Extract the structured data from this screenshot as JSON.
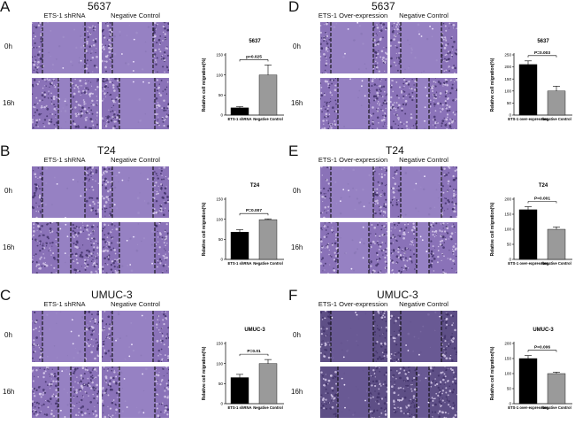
{
  "figure_colors": {
    "bar_treatment": "#000000",
    "bar_control": "#9a9a9a",
    "micrograph_tone": "#7a5aa8"
  },
  "panels": [
    {
      "letter": "A",
      "cell_line": "5637",
      "col1": "ETS-1 shRNA",
      "col2": "Negative Control",
      "row1": "0h",
      "row2": "16h",
      "treat_color": "#000000"
    },
    {
      "letter": "B",
      "cell_line": "T24",
      "col1": "ETS-1 shRNA",
      "col2": "Negative Control",
      "row1": "0h",
      "row2": "16h",
      "treat_color": "#000000"
    },
    {
      "letter": "C",
      "cell_line": "UMUC-3",
      "col1": "ETS-1 shRNA",
      "col2": "Negative Control",
      "row1": "0h",
      "row2": "16h",
      "treat_color": "#000000"
    },
    {
      "letter": "D",
      "cell_line": "5637",
      "col1": "ETS-1 Over-expression",
      "col2": "Negative Control",
      "row1": "0h",
      "row2": "16h",
      "treat_color": "#000000"
    },
    {
      "letter": "E",
      "cell_line": "T24",
      "col1": "ETS-1 Over-expression",
      "col2": "Negative Control",
      "row1": "0h",
      "row2": "16h",
      "treat_color": "#000000"
    },
    {
      "letter": "F",
      "cell_line": "UMUC-3",
      "col1": "ETS-1 Over-expression",
      "col2": "Negative Control",
      "row1": "0h",
      "row2": "16h",
      "treat_color": "#000000"
    }
  ],
  "chart_data": [
    {
      "type": "bar",
      "title": "5637",
      "ylabel": "Relative cell migration(%)",
      "categories": [
        "ETS-1 shRNA",
        "Negative Control"
      ],
      "values": [
        18,
        100
      ],
      "errors": [
        3,
        25
      ],
      "ylim": [
        0,
        150
      ],
      "yticks": [
        0,
        50,
        100,
        150
      ],
      "pvalue": "p=0.025"
    },
    {
      "type": "bar",
      "title": "T24",
      "ylabel": "Relative cell migration(%)",
      "categories": [
        "ETS-1 shRNA",
        "Negative Control"
      ],
      "values": [
        68,
        99
      ],
      "errors": [
        6,
        2
      ],
      "ylim": [
        0,
        150
      ],
      "yticks": [
        0,
        50,
        100,
        150
      ],
      "pvalue": "P=0.007"
    },
    {
      "type": "bar",
      "title": "UMUC-3",
      "ylabel": "Relative cell migration(%)",
      "categories": [
        "ETS-1 shRNA",
        "Negative Control"
      ],
      "values": [
        65,
        100
      ],
      "errors": [
        8,
        10
      ],
      "ylim": [
        0,
        150
      ],
      "yticks": [
        0,
        50,
        100,
        150
      ],
      "pvalue": "P=0.01"
    },
    {
      "type": "bar",
      "title": "5637",
      "ylabel": "Relative cell migration(%)",
      "categories": [
        "ETS-1 over-expression",
        "Negative Control"
      ],
      "values": [
        210,
        100
      ],
      "errors": [
        15,
        20
      ],
      "ylim": [
        0,
        250
      ],
      "yticks": [
        0,
        50,
        100,
        150,
        200,
        250
      ],
      "pvalue": "P=0.003"
    },
    {
      "type": "bar",
      "title": "T24",
      "ylabel": "Relative cell migration(%)",
      "categories": [
        "ETS-1 over-expression",
        "Negative Control"
      ],
      "values": [
        165,
        100
      ],
      "errors": [
        10,
        8
      ],
      "ylim": [
        0,
        200
      ],
      "yticks": [
        0,
        50,
        100,
        150,
        200
      ],
      "pvalue": "P=0.001"
    },
    {
      "type": "bar",
      "title": "UMUC-3",
      "ylabel": "Relative cell migration(%)",
      "categories": [
        "ETS-1 over-expression",
        "Negative Control"
      ],
      "values": [
        150,
        100
      ],
      "errors": [
        10,
        5
      ],
      "ylim": [
        0,
        200
      ],
      "yticks": [
        0,
        50,
        100,
        150,
        200
      ],
      "pvalue": "P=0.006"
    }
  ]
}
